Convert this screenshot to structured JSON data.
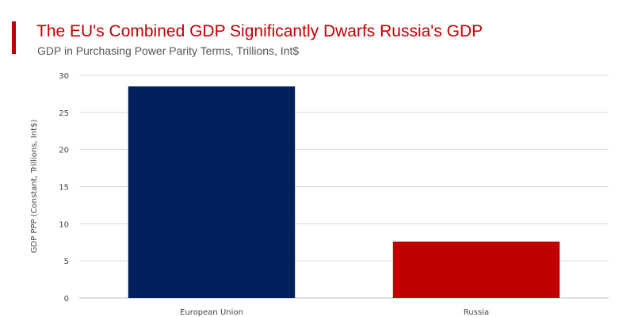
{
  "colors": {
    "accent": "#c00000",
    "title": "#c00000",
    "grid": "#d9d9d9"
  },
  "chart_data": {
    "type": "bar",
    "title": "The EU's Combined GDP Significantly Dwarfs Russia's GDP",
    "subtitle": "GDP in Purchasing Power Parity Terms, Trillions, Int$",
    "xlabel": "",
    "ylabel": "GDP PPP (Constant, Trillions, Int$)",
    "categories": [
      "European Union",
      "Russia"
    ],
    "values": [
      28.5,
      7.6
    ],
    "bar_colors": [
      "#00205b",
      "#c00000"
    ],
    "ylim": [
      0,
      30
    ],
    "yticks": [
      0,
      5,
      10,
      15,
      20,
      25,
      30
    ],
    "grid": true,
    "legend": "none"
  }
}
